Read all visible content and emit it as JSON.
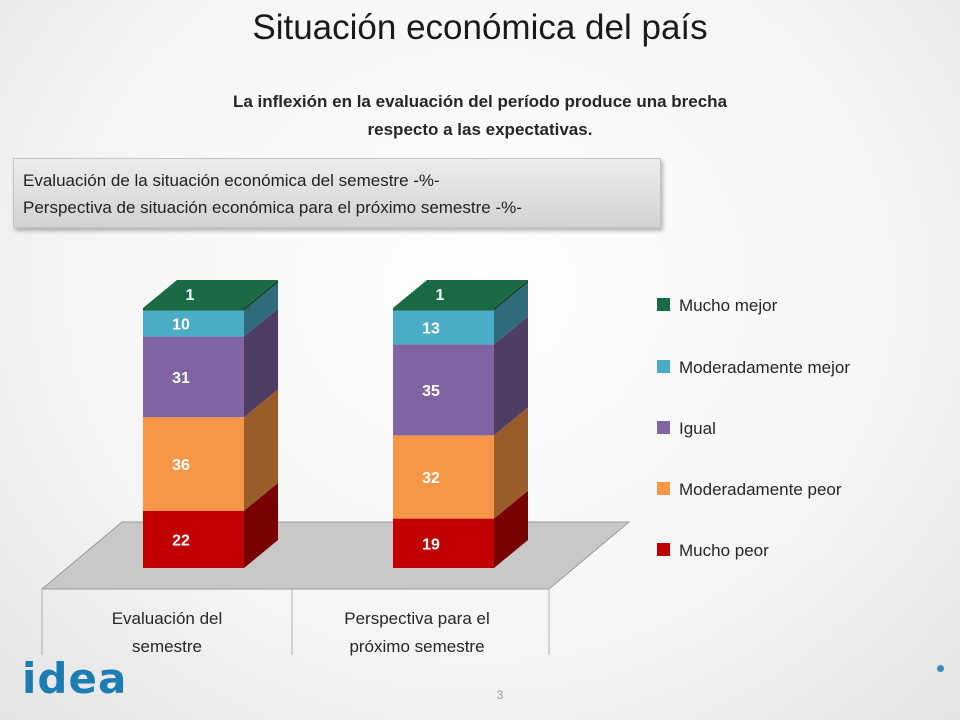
{
  "title": "Situación económica del país",
  "subtitle_lines": [
    "La inflexión en la evaluación del período produce una brecha",
    "respecto a las expectativas."
  ],
  "series_description": [
    "Evaluación de la situación económica del semestre -%-",
    "Perspectiva de situación económica para el próximo semestre -%-"
  ],
  "chart_data": {
    "type": "bar",
    "stacked": true,
    "three_d": true,
    "categories": [
      [
        "Evaluación del",
        "semestre"
      ],
      [
        "Perspectiva para el",
        "próximo semestre"
      ]
    ],
    "series": [
      {
        "name": "Mucho peor",
        "color": "#c00000",
        "values": [
          22,
          19
        ]
      },
      {
        "name": "Moderadamente peor",
        "color": "#f79646",
        "values": [
          36,
          32
        ]
      },
      {
        "name": "Igual",
        "color": "#8064a2",
        "values": [
          31,
          35
        ]
      },
      {
        "name": "Moderadamente mejor",
        "color": "#4bacc6",
        "values": [
          10,
          13
        ]
      },
      {
        "name": "Mucho mejor",
        "color": "#1a6b45",
        "values": [
          1,
          1
        ]
      }
    ],
    "ylim": [
      0,
      100
    ],
    "legend_position": "right",
    "grid": false
  },
  "footer": {
    "logo_text": "idea",
    "page_number": "3"
  }
}
